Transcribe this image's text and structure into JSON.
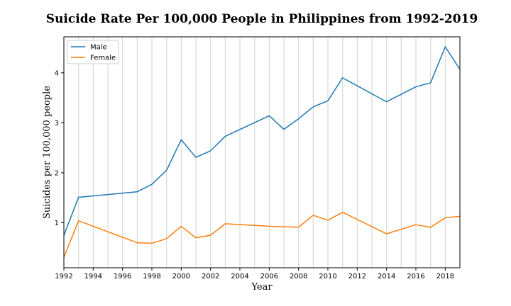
{
  "chart_data": {
    "type": "line",
    "title": "Suicide Rate Per 100,000 People in Philippines from 1992-2019",
    "xlabel": "Year",
    "ylabel": "Suicides per 100,000 people",
    "xlim": [
      1992,
      2019
    ],
    "ylim": [
      0.1,
      4.72
    ],
    "xticks": [
      1992,
      1994,
      1996,
      1998,
      2000,
      2002,
      2004,
      2006,
      2008,
      2010,
      2012,
      2014,
      2016,
      2018
    ],
    "yticks": [
      1,
      2,
      3,
      4
    ],
    "xtick_labels": [
      "1992",
      "1994",
      "1996",
      "1998",
      "2000",
      "2002",
      "2004",
      "2006",
      "2008",
      "2010",
      "2012",
      "2014",
      "2016",
      "2018"
    ],
    "ytick_labels": [
      "1",
      "2",
      "3",
      "4"
    ],
    "grid": "vertical",
    "legend_position": "top-left",
    "x": [
      1992,
      1993,
      1997,
      1998,
      1999,
      2000,
      2001,
      2002,
      2003,
      2006,
      2007,
      2008,
      2009,
      2010,
      2011,
      2014,
      2016,
      2017,
      2018,
      2019
    ],
    "series": [
      {
        "name": "Male",
        "color": "#1f77b4",
        "values": [
          0.75,
          1.51,
          1.62,
          1.77,
          2.05,
          2.66,
          2.31,
          2.44,
          2.73,
          3.14,
          2.87,
          3.08,
          3.32,
          3.44,
          3.9,
          3.42,
          3.72,
          3.8,
          4.52,
          4.07
        ]
      },
      {
        "name": "Female",
        "color": "#ff7f0e",
        "values": [
          0.31,
          1.04,
          0.6,
          0.59,
          0.68,
          0.93,
          0.7,
          0.75,
          0.98,
          0.93,
          0.92,
          0.91,
          1.15,
          1.05,
          1.21,
          0.78,
          0.96,
          0.91,
          1.1,
          1.13
        ]
      }
    ]
  }
}
